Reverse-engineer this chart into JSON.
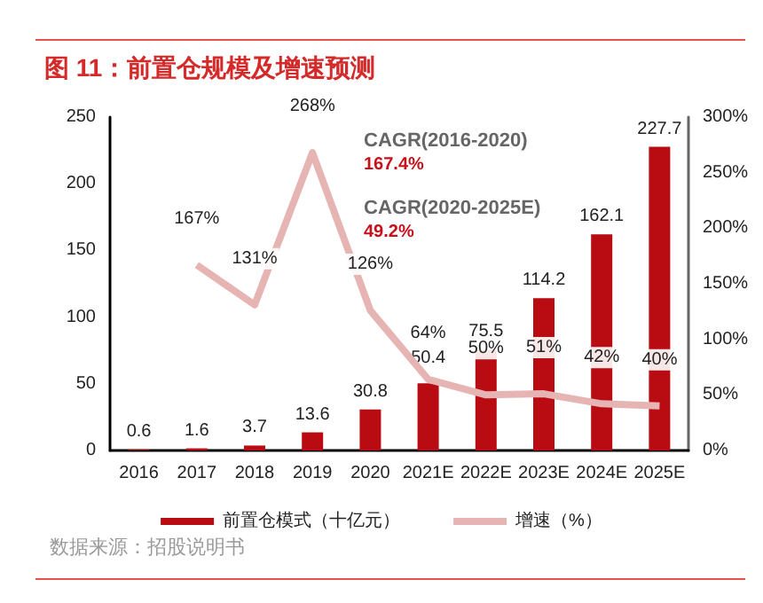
{
  "chart_data": {
    "type": "bar",
    "title": "图 11：前置仓规模及增速预测",
    "categories": [
      "2016",
      "2017",
      "2018",
      "2019",
      "2020",
      "2021E",
      "2022E",
      "2023E",
      "2024E",
      "2025E"
    ],
    "series": [
      {
        "name": "前置仓模式（十亿元）",
        "type": "bar",
        "color": "#b80c12",
        "values": [
          0.6,
          1.6,
          3.7,
          13.6,
          30.8,
          50.4,
          75.5,
          114.2,
          162.1,
          227.7
        ]
      },
      {
        "name": "增速（%）",
        "type": "line",
        "axis": "y2",
        "color": "#e6b5b3",
        "values": [
          null,
          167,
          131,
          268,
          126,
          64,
          50,
          51,
          42,
          40
        ],
        "value_labels": [
          null,
          "167%",
          "131%",
          "268%",
          "126%",
          "64%",
          "50%",
          "51%",
          "42%",
          "40%"
        ]
      }
    ],
    "ylim": [
      0,
      250
    ],
    "yticks": [
      0,
      50,
      100,
      150,
      200,
      250
    ],
    "y2lim": [
      0,
      300
    ],
    "y2ticks": [
      {
        "value": 0,
        "label": "0%"
      },
      {
        "value": 50,
        "label": "50%"
      },
      {
        "value": 100,
        "label": "100%"
      },
      {
        "value": 150,
        "label": "150%"
      },
      {
        "value": 200,
        "label": "200%"
      },
      {
        "value": 250,
        "label": "250%"
      },
      {
        "value": 300,
        "label": "300%"
      }
    ],
    "data_labels": true,
    "grid": false,
    "legend": "bottom",
    "marker": "none",
    "annotations": [
      "CAGR(2016-2020)",
      "167.4%",
      "CAGR(2020-2025E)",
      "49.2%",
      "数据来源：招股说明书"
    ]
  }
}
